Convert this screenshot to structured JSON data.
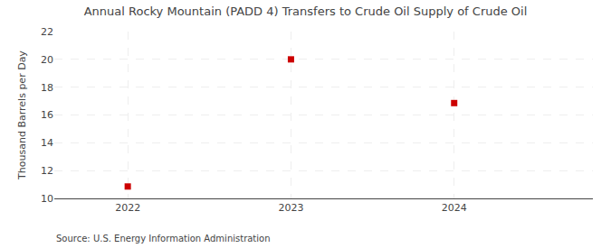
{
  "chart_data": {
    "type": "scatter",
    "title": "Annual Rocky Mountain (PADD 4) Transfers to Crude Oil Supply of Crude Oil",
    "y_label": "Thousand Barrels per Day",
    "annotations": [
      "Source: U.S. Energy Information Administration"
    ],
    "x": [
      2022,
      2023,
      2024
    ],
    "values": [
      10.857,
      20.0,
      16.857
    ],
    "color": "#cc0000",
    "marker": "square",
    "xlim": [
      2021.55,
      2024.85
    ],
    "xticks": [
      2022,
      2023,
      2024
    ],
    "ylim": [
      10,
      22
    ],
    "yticks": [
      10,
      12,
      14,
      16,
      18,
      20,
      22
    ],
    "grid": true
  }
}
